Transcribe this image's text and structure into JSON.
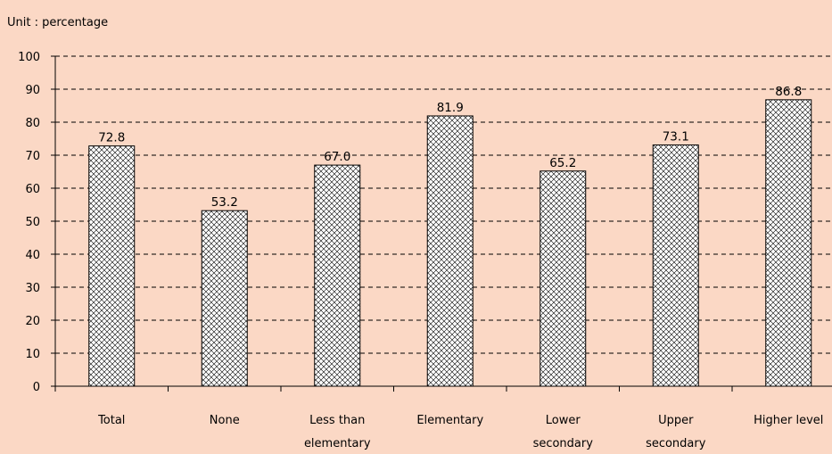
{
  "unit_label": "Unit : percentage",
  "colors": {
    "background": "#fbd8c5",
    "bar_fill": "#ffffff",
    "bar_hatch": "#000000"
  },
  "chart_data": {
    "type": "bar",
    "categories": [
      [
        "Total"
      ],
      [
        "None"
      ],
      [
        "Less than",
        "elementary"
      ],
      [
        "Elementary"
      ],
      [
        "Lower",
        "secondary"
      ],
      [
        "Upper",
        "secondary"
      ],
      [
        "Higher level"
      ]
    ],
    "values": [
      72.8,
      53.2,
      67.0,
      81.9,
      65.2,
      73.1,
      86.8
    ],
    "value_labels": [
      "72.8",
      "53.2",
      "67.0",
      "81.9",
      "65.2",
      "73.1",
      "86.8"
    ],
    "yticks": [
      0,
      10,
      20,
      30,
      40,
      50,
      60,
      70,
      80,
      90,
      100
    ],
    "ylim": [
      0,
      100
    ],
    "grid": "dashed horizontal",
    "title": "",
    "xlabel": "",
    "ylabel": ""
  }
}
